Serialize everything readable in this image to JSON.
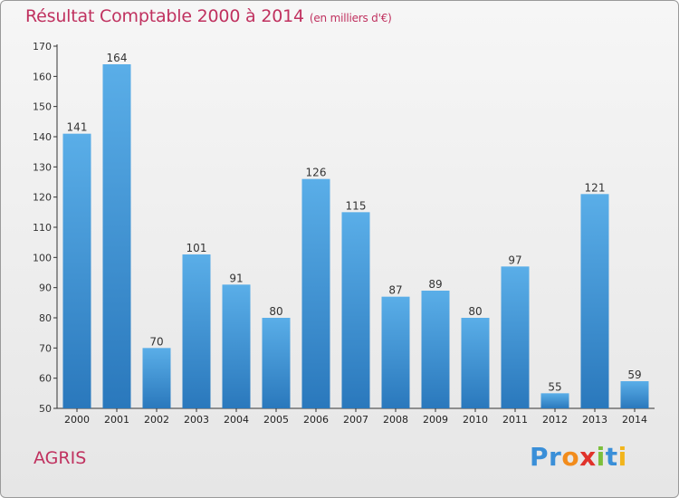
{
  "header": {
    "title": "Résultat Comptable 2000 à 2014",
    "unit": "(en milliers d'€)"
  },
  "footer": {
    "place": "AGRIS",
    "logo_letters": [
      "P",
      "r",
      "o",
      "x",
      "i",
      "t",
      "i"
    ],
    "logo_colors": [
      "#3a8fd8",
      "#3a8fd8",
      "#f28c1c",
      "#e0322b",
      "#7cbf3b",
      "#3a8fd8",
      "#f2b51c"
    ]
  },
  "chart_data": {
    "type": "bar",
    "title": "Résultat Comptable 2000 à 2014",
    "xlabel": "",
    "ylabel": "",
    "categories": [
      "2000",
      "2001",
      "2002",
      "2003",
      "2004",
      "2005",
      "2006",
      "2007",
      "2008",
      "2009",
      "2010",
      "2011",
      "2012",
      "2013",
      "2014"
    ],
    "values": [
      141,
      164,
      70,
      101,
      91,
      80,
      126,
      115,
      87,
      89,
      80,
      97,
      55,
      121,
      59
    ],
    "ylim": [
      50,
      170
    ],
    "yticks": [
      50,
      60,
      70,
      80,
      90,
      100,
      110,
      120,
      130,
      140,
      150,
      160,
      170
    ],
    "grid": false,
    "bar_color_top": "#5aaee8",
    "bar_color_bottom": "#2a78bc"
  }
}
